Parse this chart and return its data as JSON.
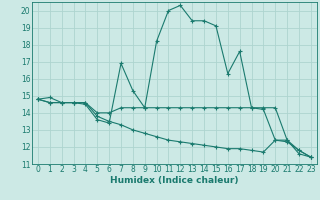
{
  "xlabel": "Humidex (Indice chaleur)",
  "bg_color": "#cce9e5",
  "line_color": "#1a7a6e",
  "grid_color": "#aed4cf",
  "xlim": [
    -0.5,
    23.5
  ],
  "ylim": [
    11,
    20.5
  ],
  "yticks": [
    11,
    12,
    13,
    14,
    15,
    16,
    17,
    18,
    19,
    20
  ],
  "xticks": [
    0,
    1,
    2,
    3,
    4,
    5,
    6,
    7,
    8,
    9,
    10,
    11,
    12,
    13,
    14,
    15,
    16,
    17,
    18,
    19,
    20,
    21,
    22,
    23
  ],
  "series1_x": [
    0,
    1,
    2,
    3,
    4,
    5,
    6,
    7,
    8,
    9,
    10,
    11,
    12,
    13,
    14,
    15,
    16,
    17,
    18,
    19,
    20,
    21,
    22,
    23
  ],
  "series1_y": [
    14.8,
    14.9,
    14.6,
    14.6,
    14.5,
    13.6,
    13.4,
    16.9,
    15.3,
    14.3,
    18.2,
    20.0,
    20.3,
    19.4,
    19.4,
    19.1,
    16.3,
    17.6,
    14.3,
    14.2,
    12.4,
    12.4,
    11.6,
    11.4
  ],
  "series2_x": [
    0,
    1,
    2,
    3,
    4,
    5,
    6,
    7,
    8,
    9,
    10,
    11,
    12,
    13,
    14,
    15,
    16,
    17,
    18,
    19,
    20,
    21,
    22,
    23
  ],
  "series2_y": [
    14.8,
    14.6,
    14.6,
    14.6,
    14.6,
    14.0,
    14.0,
    14.3,
    14.3,
    14.3,
    14.3,
    14.3,
    14.3,
    14.3,
    14.3,
    14.3,
    14.3,
    14.3,
    14.3,
    14.3,
    14.3,
    12.4,
    11.8,
    11.4
  ],
  "series3_x": [
    0,
    1,
    2,
    3,
    4,
    5,
    6,
    7,
    8,
    9,
    10,
    11,
    12,
    13,
    14,
    15,
    16,
    17,
    18,
    19,
    20,
    21,
    22,
    23
  ],
  "series3_y": [
    14.8,
    14.6,
    14.6,
    14.6,
    14.6,
    13.8,
    13.5,
    13.3,
    13.0,
    12.8,
    12.6,
    12.4,
    12.3,
    12.2,
    12.1,
    12.0,
    11.9,
    11.9,
    11.8,
    11.7,
    12.4,
    12.3,
    11.8,
    11.4
  ]
}
